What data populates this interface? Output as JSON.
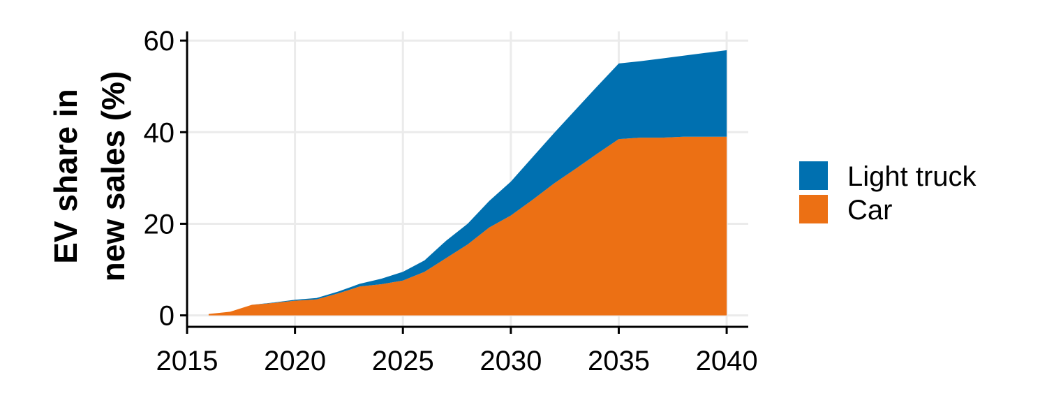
{
  "chart_data": {
    "type": "area",
    "stacked": true,
    "title": "",
    "xlabel": "",
    "ylabel_lines": [
      "EV share in",
      "new sales (%)"
    ],
    "xlim": [
      2015,
      2041
    ],
    "ylim": [
      -2.5,
      62
    ],
    "x_ticks": [
      2015,
      2020,
      2025,
      2030,
      2035,
      2040
    ],
    "y_ticks": [
      0,
      20,
      40,
      60
    ],
    "grid": true,
    "legend_position": "right",
    "x": [
      2016,
      2017,
      2018,
      2019,
      2020,
      2021,
      2022,
      2023,
      2024,
      2025,
      2026,
      2027,
      2028,
      2029,
      2030,
      2031,
      2032,
      2033,
      2034,
      2035,
      2036,
      2037,
      2038,
      2039,
      2040
    ],
    "series": [
      {
        "name": "Car",
        "color": "#EC7014",
        "values": [
          0.3,
          0.8,
          2.3,
          2.7,
          3.2,
          3.5,
          4.8,
          6.3,
          6.8,
          7.6,
          9.5,
          12.5,
          15.5,
          19.2,
          21.8,
          25.2,
          28.8,
          32.0,
          35.3,
          38.5,
          38.8,
          38.8,
          39.0,
          39.0,
          39.0
        ]
      },
      {
        "name": "Light truck",
        "color": "#0070B0",
        "values": [
          0.0,
          0.0,
          0.0,
          0.1,
          0.2,
          0.3,
          0.4,
          0.6,
          1.2,
          1.9,
          2.5,
          3.8,
          4.5,
          5.8,
          7.4,
          9.3,
          11.0,
          12.9,
          14.7,
          16.5,
          16.7,
          17.3,
          17.7,
          18.3,
          18.9
        ]
      }
    ]
  }
}
